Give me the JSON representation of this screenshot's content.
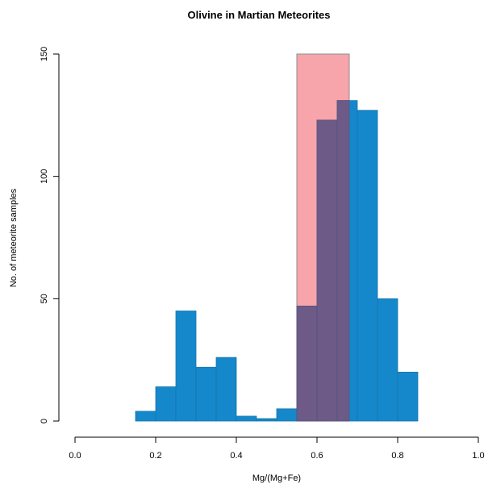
{
  "chart_data": {
    "type": "bar",
    "title": "Olivine in Martian Meteorites",
    "xlabel": "Mg/(Mg+Fe)",
    "ylabel": "No. of meteorite samples",
    "xlim": [
      0,
      1
    ],
    "ylim": [
      0,
      150
    ],
    "x_ticks": [
      "0.0",
      "0.2",
      "0.4",
      "0.6",
      "0.8",
      "1.0"
    ],
    "y_ticks": [
      "0",
      "50",
      "100",
      "150"
    ],
    "grid": false,
    "highlight_region": {
      "x_start": 0.55,
      "x_end": 0.68,
      "height": 150,
      "color": "#F7A4AB"
    },
    "bin_width": 0.05,
    "bins": [
      {
        "x_start": 0.15,
        "x_end": 0.2,
        "count": 4
      },
      {
        "x_start": 0.2,
        "x_end": 0.25,
        "count": 14
      },
      {
        "x_start": 0.25,
        "x_end": 0.3,
        "count": 45
      },
      {
        "x_start": 0.3,
        "x_end": 0.35,
        "count": 22
      },
      {
        "x_start": 0.35,
        "x_end": 0.4,
        "count": 26
      },
      {
        "x_start": 0.4,
        "x_end": 0.45,
        "count": 2
      },
      {
        "x_start": 0.45,
        "x_end": 0.5,
        "count": 1
      },
      {
        "x_start": 0.5,
        "x_end": 0.55,
        "count": 5
      },
      {
        "x_start": 0.55,
        "x_end": 0.6,
        "count": 47
      },
      {
        "x_start": 0.6,
        "x_end": 0.65,
        "count": 123
      },
      {
        "x_start": 0.65,
        "x_end": 0.7,
        "count": 131
      },
      {
        "x_start": 0.7,
        "x_end": 0.75,
        "count": 127
      },
      {
        "x_start": 0.75,
        "x_end": 0.8,
        "count": 50
      },
      {
        "x_start": 0.8,
        "x_end": 0.85,
        "count": 20
      }
    ],
    "bar_color": "#1588CB",
    "overlap_color": "#6E5A87"
  }
}
